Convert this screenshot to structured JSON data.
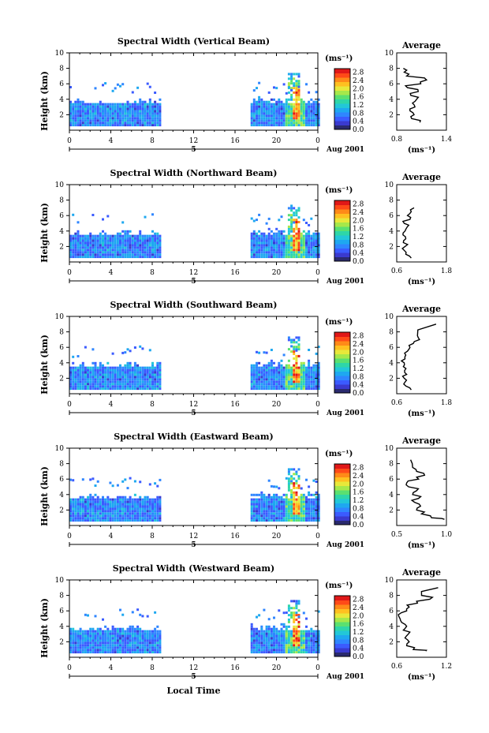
{
  "figure": {
    "local_time_label": "Local Time",
    "date_label": "Aug 2001",
    "date_day": "5",
    "unit_label": "(ms⁻¹)",
    "average_title": "Average",
    "colormap": [
      "#2a2a6e",
      "#3a3acf",
      "#3b5bff",
      "#2f86ff",
      "#1ea8f0",
      "#22c7d8",
      "#2ed6a8",
      "#5ae070",
      "#a6e84a",
      "#e8e83a",
      "#ffc020",
      "#ff8a18",
      "#ff4a18",
      "#e01818"
    ],
    "colorbar_ticks": [
      "0.0",
      "0.4",
      "0.8",
      "1.2",
      "1.6",
      "2.0",
      "2.4",
      "2.8"
    ]
  },
  "chart_data": [
    {
      "type": "heatmap",
      "title": "Spectral Width (Vertical Beam)",
      "ylabel": "Height (km)",
      "xlim": [
        0,
        24
      ],
      "xticks": [
        "0",
        "4",
        "8",
        "12",
        "16",
        "20",
        "0"
      ],
      "ylim": [
        0,
        10
      ],
      "yticks": [
        "2",
        "4",
        "6",
        "8",
        "10"
      ],
      "colorbar_range": [
        0.0,
        2.8
      ],
      "data_segments": [
        [
          0,
          8.8
        ],
        [
          17.5,
          24
        ]
      ],
      "average_profile": {
        "xlim": [
          0.8,
          1.4
        ],
        "xticks": [
          "0.8",
          "1.4"
        ],
        "xlabel": "(ms⁻¹)",
        "ylim": [
          0,
          10
        ],
        "yticks": [
          "2",
          "4",
          "6",
          "8",
          "10"
        ],
        "height_km": [
          1.0,
          1.5,
          2.0,
          2.5,
          3.0,
          3.5,
          4.0,
          4.5,
          5.0,
          5.5,
          6.0,
          6.5,
          7.0,
          7.5,
          8.0
        ],
        "width_ms": [
          1.08,
          0.98,
          1.01,
          0.96,
          1.02,
          0.99,
          1.04,
          0.97,
          1.06,
          0.93,
          1.09,
          1.16,
          0.92,
          0.89,
          0.88
        ]
      }
    },
    {
      "type": "heatmap",
      "title": "Spectral Width (Northward Beam)",
      "ylabel": "Height (km)",
      "xlim": [
        0,
        24
      ],
      "xticks": [
        "0",
        "4",
        "8",
        "12",
        "16",
        "20",
        "0"
      ],
      "ylim": [
        0,
        10
      ],
      "yticks": [
        "2",
        "4",
        "6",
        "8",
        "10"
      ],
      "colorbar_range": [
        0.0,
        2.8
      ],
      "data_segments": [
        [
          0,
          8.8
        ],
        [
          17.5,
          24
        ]
      ],
      "average_profile": {
        "xlim": [
          0.6,
          1.8
        ],
        "xticks": [
          "0.6",
          "1.8"
        ],
        "xlabel": "(ms⁻¹)",
        "ylim": [
          0,
          10
        ],
        "yticks": [
          "2",
          "4",
          "6",
          "8",
          "10"
        ],
        "height_km": [
          0.5,
          1.0,
          1.5,
          2.0,
          2.5,
          3.0,
          3.5,
          4.0,
          4.5,
          5.0,
          5.5,
          6.0,
          6.5,
          7.0
        ],
        "width_ms": [
          0.95,
          0.82,
          0.78,
          0.8,
          0.76,
          0.82,
          0.75,
          0.8,
          0.85,
          0.78,
          0.92,
          0.86,
          0.95,
          1.02
        ]
      }
    },
    {
      "type": "heatmap",
      "title": "Spectral Width (Southward Beam)",
      "ylabel": "Height (km)",
      "xlim": [
        0,
        24
      ],
      "xticks": [
        "0",
        "4",
        "8",
        "12",
        "16",
        "20",
        "0"
      ],
      "ylim": [
        0,
        10
      ],
      "yticks": [
        "2",
        "4",
        "6",
        "8",
        "10"
      ],
      "colorbar_range": [
        0.0,
        2.8
      ],
      "data_segments": [
        [
          0,
          8.8
        ],
        [
          17.5,
          24
        ]
      ],
      "average_profile": {
        "xlim": [
          0.6,
          1.8
        ],
        "xticks": [
          "0.6",
          "1.8"
        ],
        "xlabel": "(ms⁻¹)",
        "ylim": [
          0,
          10
        ],
        "yticks": [
          "2",
          "4",
          "6",
          "8",
          "10"
        ],
        "height_km": [
          0.5,
          1.0,
          1.5,
          2.0,
          2.5,
          3.0,
          3.5,
          4.0,
          4.5,
          5.0,
          5.5,
          6.0,
          6.5,
          7.0,
          7.5,
          9.0
        ],
        "width_ms": [
          0.95,
          0.82,
          0.8,
          0.78,
          0.84,
          0.79,
          0.76,
          0.78,
          0.8,
          0.82,
          0.86,
          0.92,
          1.0,
          1.15,
          1.1,
          1.55
        ]
      }
    },
    {
      "type": "heatmap",
      "title": "Spectral Width (Eastward Beam)",
      "ylabel": "Height (km)",
      "xlim": [
        0,
        24
      ],
      "xticks": [
        "0",
        "4",
        "8",
        "12",
        "16",
        "20",
        "0"
      ],
      "ylim": [
        0,
        10
      ],
      "yticks": [
        "2",
        "4",
        "6",
        "8",
        "10"
      ],
      "colorbar_range": [
        0.0,
        2.8
      ],
      "data_segments": [
        [
          0,
          8.8
        ],
        [
          17.5,
          24
        ]
      ],
      "average_profile": {
        "xlim": [
          0.5,
          1.0
        ],
        "xticks": [
          "0.5",
          "1.0"
        ],
        "xlabel": "(ms⁻¹)",
        "ylim": [
          0,
          10
        ],
        "yticks": [
          "2",
          "4",
          "6",
          "8",
          "10"
        ],
        "height_km": [
          0.8,
          1.0,
          1.5,
          2.0,
          2.5,
          3.0,
          3.5,
          4.0,
          4.5,
          5.0,
          5.5,
          6.0,
          6.5,
          7.0,
          7.5,
          8.5
        ],
        "width_ms": [
          0.98,
          0.85,
          0.75,
          0.7,
          0.74,
          0.68,
          0.72,
          0.66,
          0.7,
          0.62,
          0.6,
          0.72,
          0.78,
          0.7,
          0.66,
          0.64
        ]
      }
    },
    {
      "type": "heatmap",
      "title": "Spectral Width (Westward Beam)",
      "ylabel": "Height (km)",
      "xlim": [
        0,
        24
      ],
      "xticks": [
        "0",
        "4",
        "8",
        "12",
        "16",
        "20",
        "0"
      ],
      "ylim": [
        0,
        10
      ],
      "yticks": [
        "2",
        "4",
        "6",
        "8",
        "10"
      ],
      "colorbar_range": [
        0.0,
        2.8
      ],
      "data_segments": [
        [
          0,
          8.8
        ],
        [
          17.5,
          24
        ]
      ],
      "average_profile": {
        "xlim": [
          0.6,
          1.2
        ],
        "xticks": [
          "0.6",
          "1.2"
        ],
        "xlabel": "(ms⁻¹)",
        "ylim": [
          0,
          10
        ],
        "yticks": [
          "2",
          "4",
          "6",
          "8",
          "10"
        ],
        "height_km": [
          0.8,
          1.0,
          1.5,
          2.0,
          2.5,
          3.0,
          3.5,
          4.0,
          4.5,
          5.0,
          5.5,
          6.0,
          6.5,
          7.0,
          7.5,
          8.0,
          9.0
        ],
        "width_ms": [
          0.95,
          0.8,
          0.72,
          0.75,
          0.7,
          0.74,
          0.68,
          0.72,
          0.66,
          0.64,
          0.62,
          0.72,
          0.75,
          0.85,
          1.0,
          0.9,
          1.1
        ]
      }
    }
  ]
}
